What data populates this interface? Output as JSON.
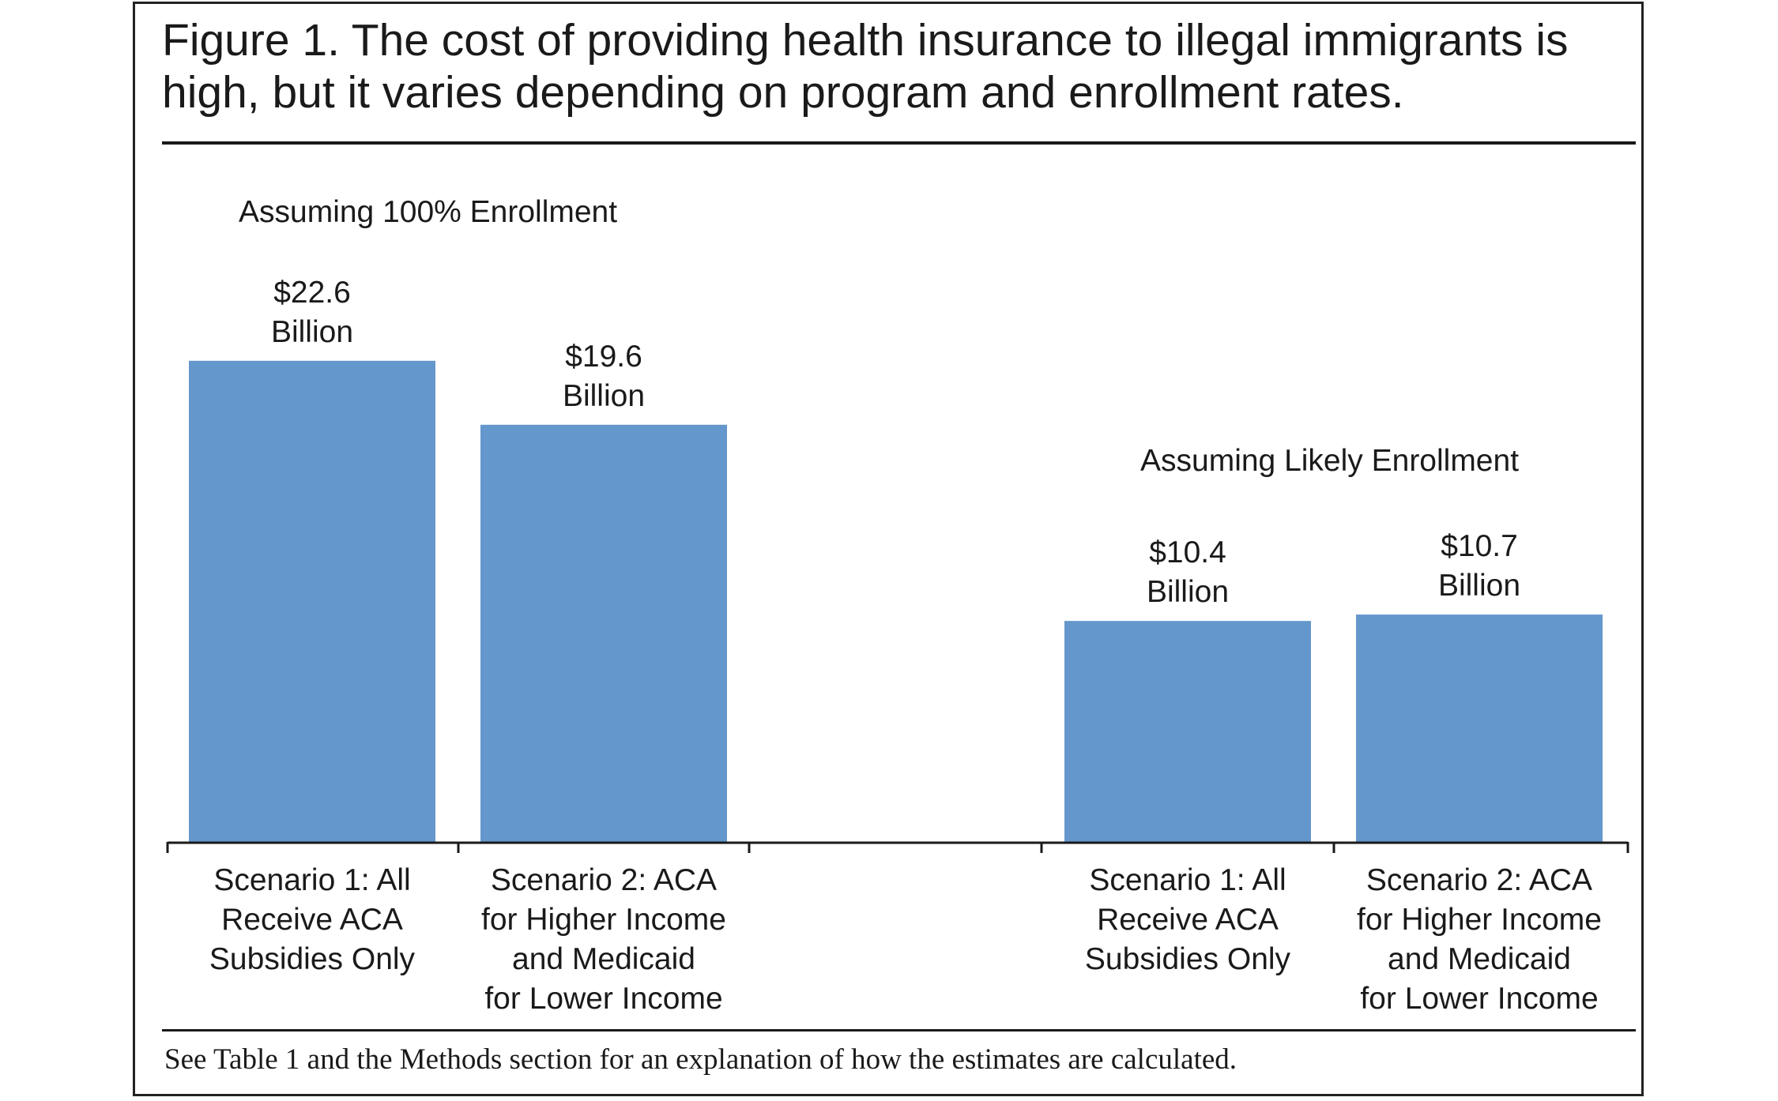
{
  "figure": {
    "title_lines": [
      "Figure 1. The cost of providing health insurance to illegal immigrants is",
      "high, but it varies depending on program and enrollment rates."
    ],
    "footnote": "See Table 1 and the Methods section for an explanation of how the estimates are calculated."
  },
  "chart_data": {
    "type": "bar",
    "title": "Figure 1. The cost of providing health insurance to illegal immigrants is high, but it varies depending on program and enrollment rates.",
    "xlabel": "",
    "ylabel": "",
    "unit": "Billion",
    "grid": false,
    "groups": [
      {
        "label": "Assuming 100% Enrollment",
        "bars": [
          {
            "category_lines": [
              "Scenario 1: All",
              "Receive ACA",
              "Subsidies Only"
            ],
            "value": 22.6,
            "label_lines": [
              "$22.6",
              "Billion"
            ]
          },
          {
            "category_lines": [
              "Scenario 2: ACA",
              "for Higher Income",
              "and Medicaid",
              "for Lower Income"
            ],
            "value": 19.6,
            "label_lines": [
              "$19.6",
              "Billion"
            ]
          }
        ]
      },
      {
        "label": "Assuming Likely Enrollment",
        "bars": [
          {
            "category_lines": [
              "Scenario 1: All",
              "Receive ACA",
              "Subsidies Only"
            ],
            "value": 10.4,
            "label_lines": [
              "$10.4",
              "Billion"
            ]
          },
          {
            "category_lines": [
              "Scenario 2: ACA",
              "for Higher Income",
              "and Medicaid",
              "for Lower Income"
            ],
            "value": 10.7,
            "label_lines": [
              "$10.7",
              "Billion"
            ]
          }
        ]
      }
    ],
    "colors": {
      "bar": "#6497cb",
      "axis": "#1a1a1a",
      "text": "#1a1a1a"
    }
  }
}
